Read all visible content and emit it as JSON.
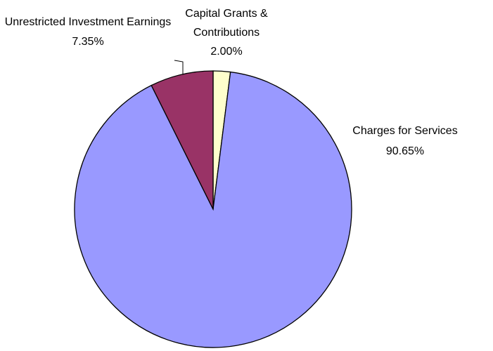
{
  "chart_data": {
    "type": "pie",
    "categories": [
      "Capital Grants & Contributions",
      "Charges for Services",
      "Unrestricted Investment Earnings"
    ],
    "values": [
      2.0,
      90.65,
      7.35
    ],
    "value_labels": [
      "2.00%",
      "90.65%",
      "7.35%"
    ],
    "colors": [
      "#ffffcc",
      "#9999ff",
      "#993366"
    ]
  }
}
